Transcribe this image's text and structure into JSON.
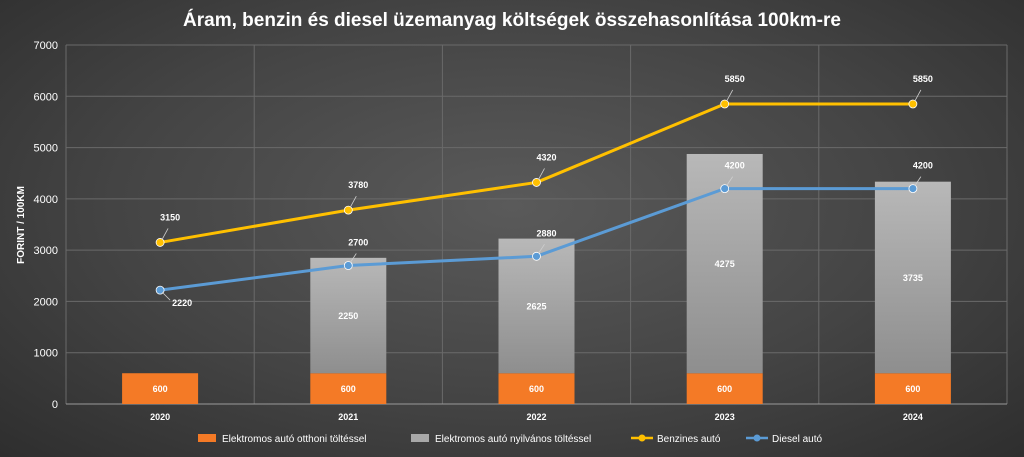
{
  "chart_data": {
    "type": "bar",
    "title": "Áram, benzin és diesel üzemanyag költségek összehasonlítása 100km-re",
    "xlabel": "",
    "ylabel": "FORINT / 100KM",
    "ylim": [
      0,
      7000
    ],
    "yticks": [
      0,
      1000,
      2000,
      3000,
      4000,
      5000,
      6000,
      7000
    ],
    "categories": [
      "2020",
      "2021",
      "2022",
      "2023",
      "2024"
    ],
    "grid": true,
    "legend_position": "bottom",
    "series": [
      {
        "name": "Elektromos autó otthoni töltéssel",
        "type": "bar",
        "stack": "ev",
        "color": "#f47a26",
        "values": [
          600,
          600,
          600,
          600,
          600
        ]
      },
      {
        "name": "Elektromos autó nyilvános töltéssel",
        "type": "bar",
        "stack": "ev",
        "color": "#a8a8a8",
        "values": [
          null,
          2250,
          2625,
          4275,
          3735
        ]
      },
      {
        "name": "Benzines autó",
        "type": "line",
        "color": "#ffc000",
        "values": [
          3150,
          3780,
          4320,
          5850,
          5850
        ]
      },
      {
        "name": "Diesel autó",
        "type": "line",
        "color": "#5b9bd5",
        "values": [
          2220,
          2700,
          2880,
          4200,
          4200
        ]
      }
    ]
  }
}
